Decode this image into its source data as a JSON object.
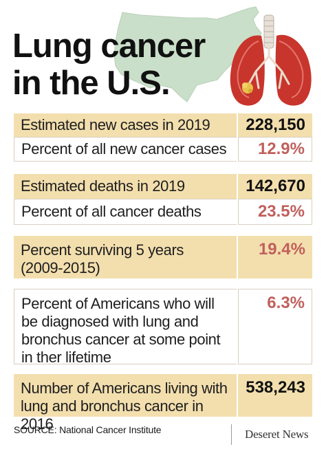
{
  "title": {
    "line1": "Lung cancer",
    "line2": "in the U.S."
  },
  "chart_data": {
    "type": "table",
    "rows": [
      {
        "label": "Estimated new cases in 2019",
        "value": "228,150"
      },
      {
        "label": "Percent of all new cancer cases",
        "value": "12.9%"
      },
      {
        "label": "Estimated deaths in 2019",
        "value": "142,670"
      },
      {
        "label": "Percent of all cancer deaths",
        "value": "23.5%"
      },
      {
        "label": "Percent surviving 5 years (2009-2015)",
        "label_lines": [
          "Percent surviving 5 years",
          "(2009-2015)"
        ],
        "value": "19.4%"
      },
      {
        "label": "Percent of Americans who will be diagnosed with lung and bronchus cancer at some point in ther lifetime",
        "label_lines": [
          "Percent of Americans who will",
          "be diagnosed with lung and",
          "bronchus cancer at some point",
          "in ther lifetime"
        ],
        "value": "6.3%"
      },
      {
        "label": "Number of Americans living with lung and bronchus cancer in 2016",
        "label_lines": [
          "Number of Americans living with",
          "lung and bronchus cancer in 2016"
        ],
        "value": "538,243"
      }
    ]
  },
  "footer": {
    "source": "SOURCE: National Cancer Institute",
    "brand": "Deseret News"
  },
  "colors": {
    "band": "#f3dfae",
    "percent_text": "#c0605c",
    "map_fill": "#c9dfc9",
    "lung_red": "#c8352c"
  }
}
